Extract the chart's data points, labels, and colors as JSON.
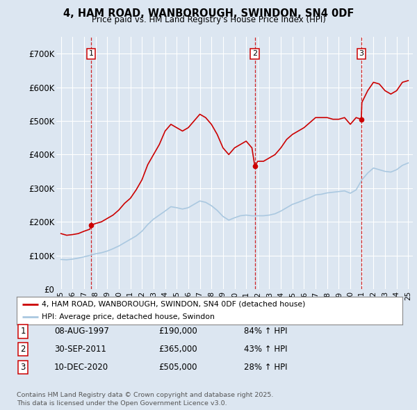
{
  "title": "4, HAM ROAD, WANBOROUGH, SWINDON, SN4 0DF",
  "subtitle": "Price paid vs. HM Land Registry's House Price Index (HPI)",
  "bg_color": "#dce6f1",
  "plot_bg_color": "#dce6f1",
  "red_line_color": "#cc0000",
  "blue_line_color": "#aac8e0",
  "vline_color": "#cc0000",
  "grid_color": "#ffffff",
  "ylim": [
    0,
    750000
  ],
  "yticks": [
    0,
    100000,
    200000,
    300000,
    400000,
    500000,
    600000,
    700000
  ],
  "ytick_labels": [
    "£0",
    "£100K",
    "£200K",
    "£300K",
    "£400K",
    "£500K",
    "£600K",
    "£700K"
  ],
  "legend_red": "4, HAM ROAD, WANBOROUGH, SWINDON, SN4 0DF (detached house)",
  "legend_blue": "HPI: Average price, detached house, Swindon",
  "sale1_date": "08-AUG-1997",
  "sale1_price": "£190,000",
  "sale1_hpi": "84% ↑ HPI",
  "sale1_year": 1997.6,
  "sale1_price_val": 190000,
  "sale2_date": "30-SEP-2011",
  "sale2_price": "£365,000",
  "sale2_hpi": "43% ↑ HPI",
  "sale2_year": 2011.75,
  "sale2_price_val": 365000,
  "sale3_date": "10-DEC-2020",
  "sale3_price": "£505,000",
  "sale3_hpi": "28% ↑ HPI",
  "sale3_year": 2020.95,
  "sale3_price_val": 505000,
  "footer": "Contains HM Land Registry data © Crown copyright and database right 2025.\nThis data is licensed under the Open Government Licence v3.0.",
  "hpi_red_data": {
    "years": [
      1995.0,
      1995.5,
      1996.0,
      1996.5,
      1997.0,
      1997.5,
      1997.6,
      1998.0,
      1998.5,
      1999.0,
      1999.5,
      2000.0,
      2000.5,
      2001.0,
      2001.5,
      2002.0,
      2002.5,
      2003.0,
      2003.5,
      2004.0,
      2004.5,
      2005.0,
      2005.5,
      2006.0,
      2006.5,
      2007.0,
      2007.5,
      2008.0,
      2008.5,
      2009.0,
      2009.5,
      2010.0,
      2010.5,
      2011.0,
      2011.5,
      2011.75,
      2012.0,
      2012.5,
      2013.0,
      2013.5,
      2014.0,
      2014.5,
      2015.0,
      2015.5,
      2016.0,
      2016.5,
      2017.0,
      2017.5,
      2018.0,
      2018.5,
      2019.0,
      2019.5,
      2020.0,
      2020.5,
      2020.95,
      2021.0,
      2021.5,
      2022.0,
      2022.5,
      2023.0,
      2023.5,
      2024.0,
      2024.5,
      2025.0
    ],
    "values": [
      165000,
      160000,
      162000,
      165000,
      172000,
      178000,
      190000,
      195000,
      200000,
      210000,
      220000,
      235000,
      255000,
      270000,
      295000,
      325000,
      370000,
      400000,
      430000,
      470000,
      490000,
      480000,
      470000,
      480000,
      500000,
      520000,
      510000,
      490000,
      460000,
      420000,
      400000,
      420000,
      430000,
      440000,
      420000,
      365000,
      380000,
      380000,
      390000,
      400000,
      420000,
      445000,
      460000,
      470000,
      480000,
      495000,
      510000,
      510000,
      510000,
      505000,
      505000,
      510000,
      490000,
      510000,
      505000,
      555000,
      590000,
      615000,
      610000,
      590000,
      580000,
      590000,
      615000,
      620000
    ]
  },
  "hpi_blue_data": {
    "years": [
      1995.0,
      1995.5,
      1996.0,
      1996.5,
      1997.0,
      1997.5,
      1998.0,
      1998.5,
      1999.0,
      1999.5,
      2000.0,
      2000.5,
      2001.0,
      2001.5,
      2002.0,
      2002.5,
      2003.0,
      2003.5,
      2004.0,
      2004.5,
      2005.0,
      2005.5,
      2006.0,
      2006.5,
      2007.0,
      2007.5,
      2008.0,
      2008.5,
      2009.0,
      2009.5,
      2010.0,
      2010.5,
      2011.0,
      2011.5,
      2012.0,
      2012.5,
      2013.0,
      2013.5,
      2014.0,
      2014.5,
      2015.0,
      2015.5,
      2016.0,
      2016.5,
      2017.0,
      2017.5,
      2018.0,
      2018.5,
      2019.0,
      2019.5,
      2020.0,
      2020.5,
      2021.0,
      2021.5,
      2022.0,
      2022.5,
      2023.0,
      2023.5,
      2024.0,
      2024.5,
      2025.0
    ],
    "values": [
      88000,
      87000,
      89000,
      92000,
      96000,
      100000,
      105000,
      108000,
      113000,
      120000,
      128000,
      138000,
      148000,
      158000,
      172000,
      192000,
      208000,
      220000,
      232000,
      245000,
      242000,
      238000,
      242000,
      252000,
      262000,
      258000,
      248000,
      234000,
      216000,
      205000,
      212000,
      218000,
      220000,
      218000,
      218000,
      218000,
      220000,
      224000,
      232000,
      242000,
      252000,
      258000,
      265000,
      272000,
      280000,
      282000,
      286000,
      288000,
      290000,
      292000,
      285000,
      295000,
      325000,
      345000,
      360000,
      355000,
      350000,
      348000,
      355000,
      368000,
      375000
    ]
  }
}
